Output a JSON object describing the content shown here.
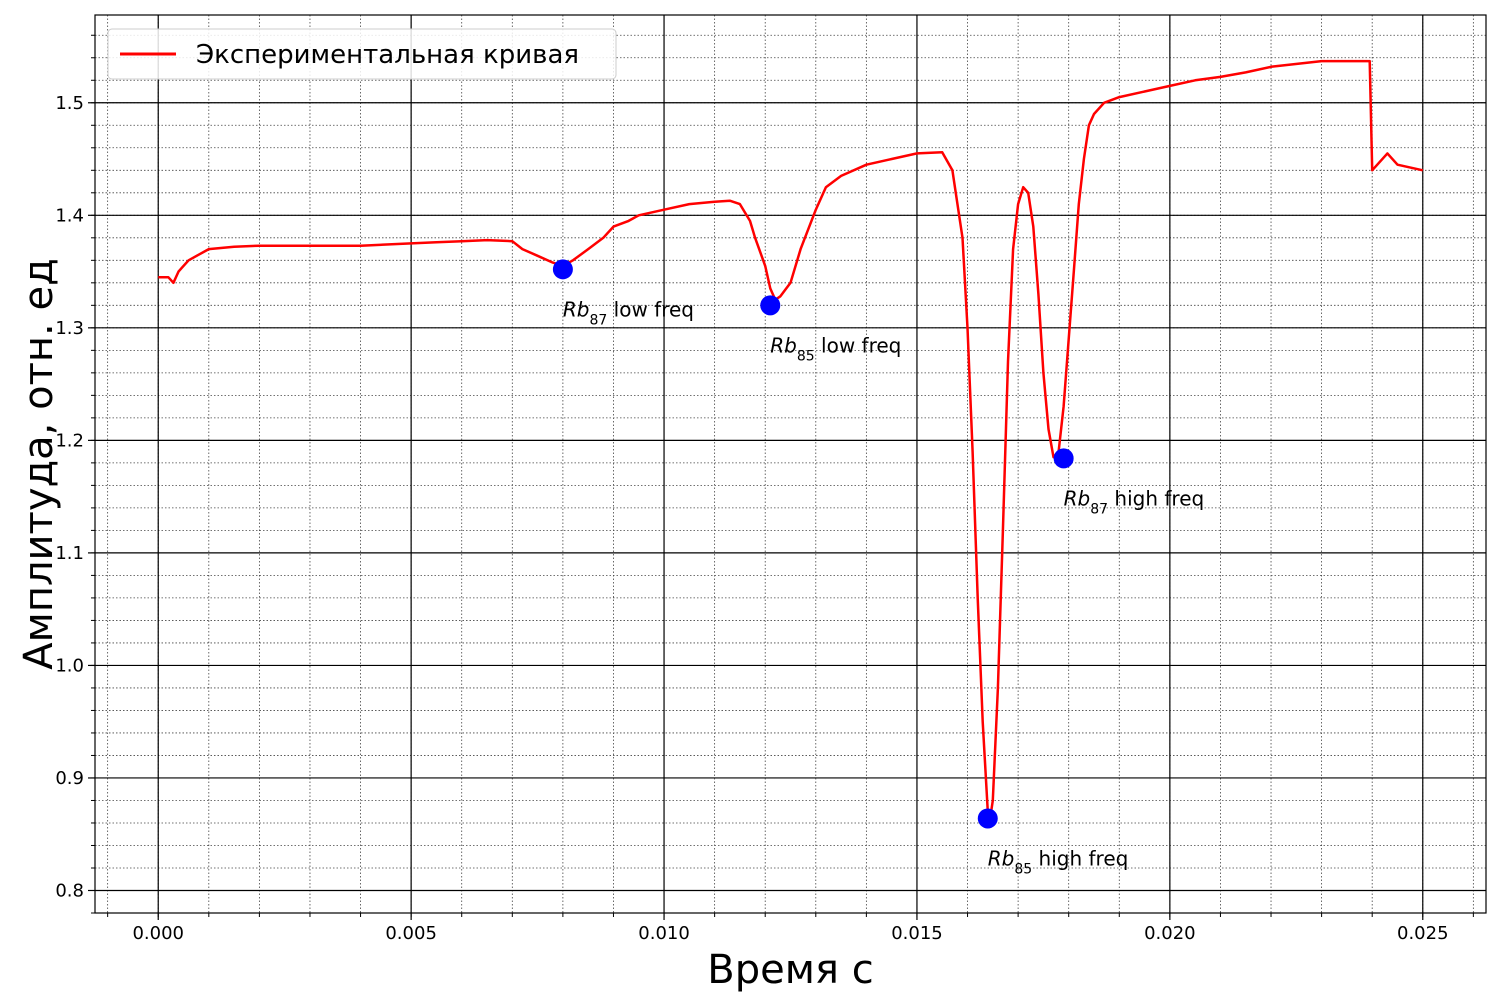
{
  "chart_data": {
    "type": "line",
    "title": "",
    "xlabel": "Время с",
    "ylabel": "Амплитуда, отн. ед",
    "xlim": [
      -0.00125,
      0.02625
    ],
    "ylim": [
      0.78,
      1.578
    ],
    "grid": true,
    "legend": "top-left",
    "xticks": [
      {
        "value": 0.0,
        "label": "0.000"
      },
      {
        "value": 0.005,
        "label": "0.005"
      },
      {
        "value": 0.01,
        "label": "0.010"
      },
      {
        "value": 0.015,
        "label": "0.015"
      },
      {
        "value": 0.02,
        "label": "0.020"
      },
      {
        "value": 0.025,
        "label": "0.025"
      }
    ],
    "yticks": [
      {
        "value": 0.8,
        "label": "0.8"
      },
      {
        "value": 0.9,
        "label": "0.9"
      },
      {
        "value": 1.0,
        "label": "1.0"
      },
      {
        "value": 1.1,
        "label": "1.1"
      },
      {
        "value": 1.2,
        "label": "1.2"
      },
      {
        "value": 1.3,
        "label": "1.3"
      },
      {
        "value": 1.4,
        "label": "1.4"
      },
      {
        "value": 1.5,
        "label": "1.5"
      }
    ],
    "series": [
      {
        "name": "Экспериментальная кривая",
        "color": "#ff0000",
        "x": [
          0.0,
          0.0002,
          0.0003,
          0.0004,
          0.0005,
          0.0006,
          0.0008,
          0.001,
          0.0015,
          0.002,
          0.003,
          0.004,
          0.005,
          0.0055,
          0.006,
          0.0065,
          0.007,
          0.0072,
          0.0075,
          0.0078,
          0.008,
          0.0082,
          0.0085,
          0.0088,
          0.009,
          0.0093,
          0.0095,
          0.01,
          0.0105,
          0.011,
          0.0113,
          0.0115,
          0.0117,
          0.0118,
          0.012,
          0.0121,
          0.0122,
          0.0123,
          0.0125,
          0.0127,
          0.013,
          0.0132,
          0.0135,
          0.014,
          0.0145,
          0.015,
          0.0155,
          0.0157,
          0.0159,
          0.016,
          0.0161,
          0.0162,
          0.0163,
          0.0164,
          0.01645,
          0.0165,
          0.0166,
          0.0167,
          0.0168,
          0.0169,
          0.017,
          0.0171,
          0.0172,
          0.0173,
          0.0174,
          0.0175,
          0.0176,
          0.0177,
          0.0178,
          0.0179,
          0.018,
          0.0181,
          0.0182,
          0.0183,
          0.0184,
          0.0185,
          0.0187,
          0.019,
          0.0195,
          0.02,
          0.0205,
          0.021,
          0.0215,
          0.022,
          0.023,
          0.0235,
          0.0239,
          0.02395,
          0.024,
          0.0243,
          0.0245,
          0.025
        ],
        "y": [
          1.345,
          1.345,
          1.34,
          1.35,
          1.355,
          1.36,
          1.365,
          1.37,
          1.372,
          1.373,
          1.373,
          1.373,
          1.375,
          1.376,
          1.377,
          1.378,
          1.377,
          1.37,
          1.364,
          1.358,
          1.355,
          1.36,
          1.37,
          1.38,
          1.39,
          1.395,
          1.4,
          1.405,
          1.41,
          1.412,
          1.413,
          1.41,
          1.395,
          1.38,
          1.355,
          1.335,
          1.325,
          1.328,
          1.34,
          1.37,
          1.405,
          1.425,
          1.435,
          1.445,
          1.45,
          1.455,
          1.456,
          1.44,
          1.38,
          1.3,
          1.19,
          1.06,
          0.95,
          0.87,
          0.865,
          0.88,
          0.98,
          1.12,
          1.27,
          1.37,
          1.41,
          1.425,
          1.42,
          1.39,
          1.33,
          1.26,
          1.21,
          1.185,
          1.19,
          1.23,
          1.29,
          1.35,
          1.41,
          1.45,
          1.48,
          1.49,
          1.5,
          1.505,
          1.51,
          1.515,
          1.52,
          1.523,
          1.527,
          1.532,
          1.537,
          1.537,
          1.537,
          1.537,
          1.44,
          1.455,
          1.445,
          1.44
        ]
      }
    ],
    "markers": [
      {
        "x": 0.008,
        "y": 1.352,
        "color": "#0000ff",
        "label_sub": "87",
        "label_rest": " low freq"
      },
      {
        "x": 0.0121,
        "y": 1.32,
        "color": "#0000ff",
        "label_sub": "85",
        "label_rest": " low freq"
      },
      {
        "x": 0.0164,
        "y": 0.864,
        "color": "#0000ff",
        "label_sub": "85",
        "label_rest": " high freq"
      },
      {
        "x": 0.0179,
        "y": 1.184,
        "color": "#0000ff",
        "label_sub": "87",
        "label_rest": " high freq"
      }
    ],
    "annotation_prefix": "Rb"
  }
}
